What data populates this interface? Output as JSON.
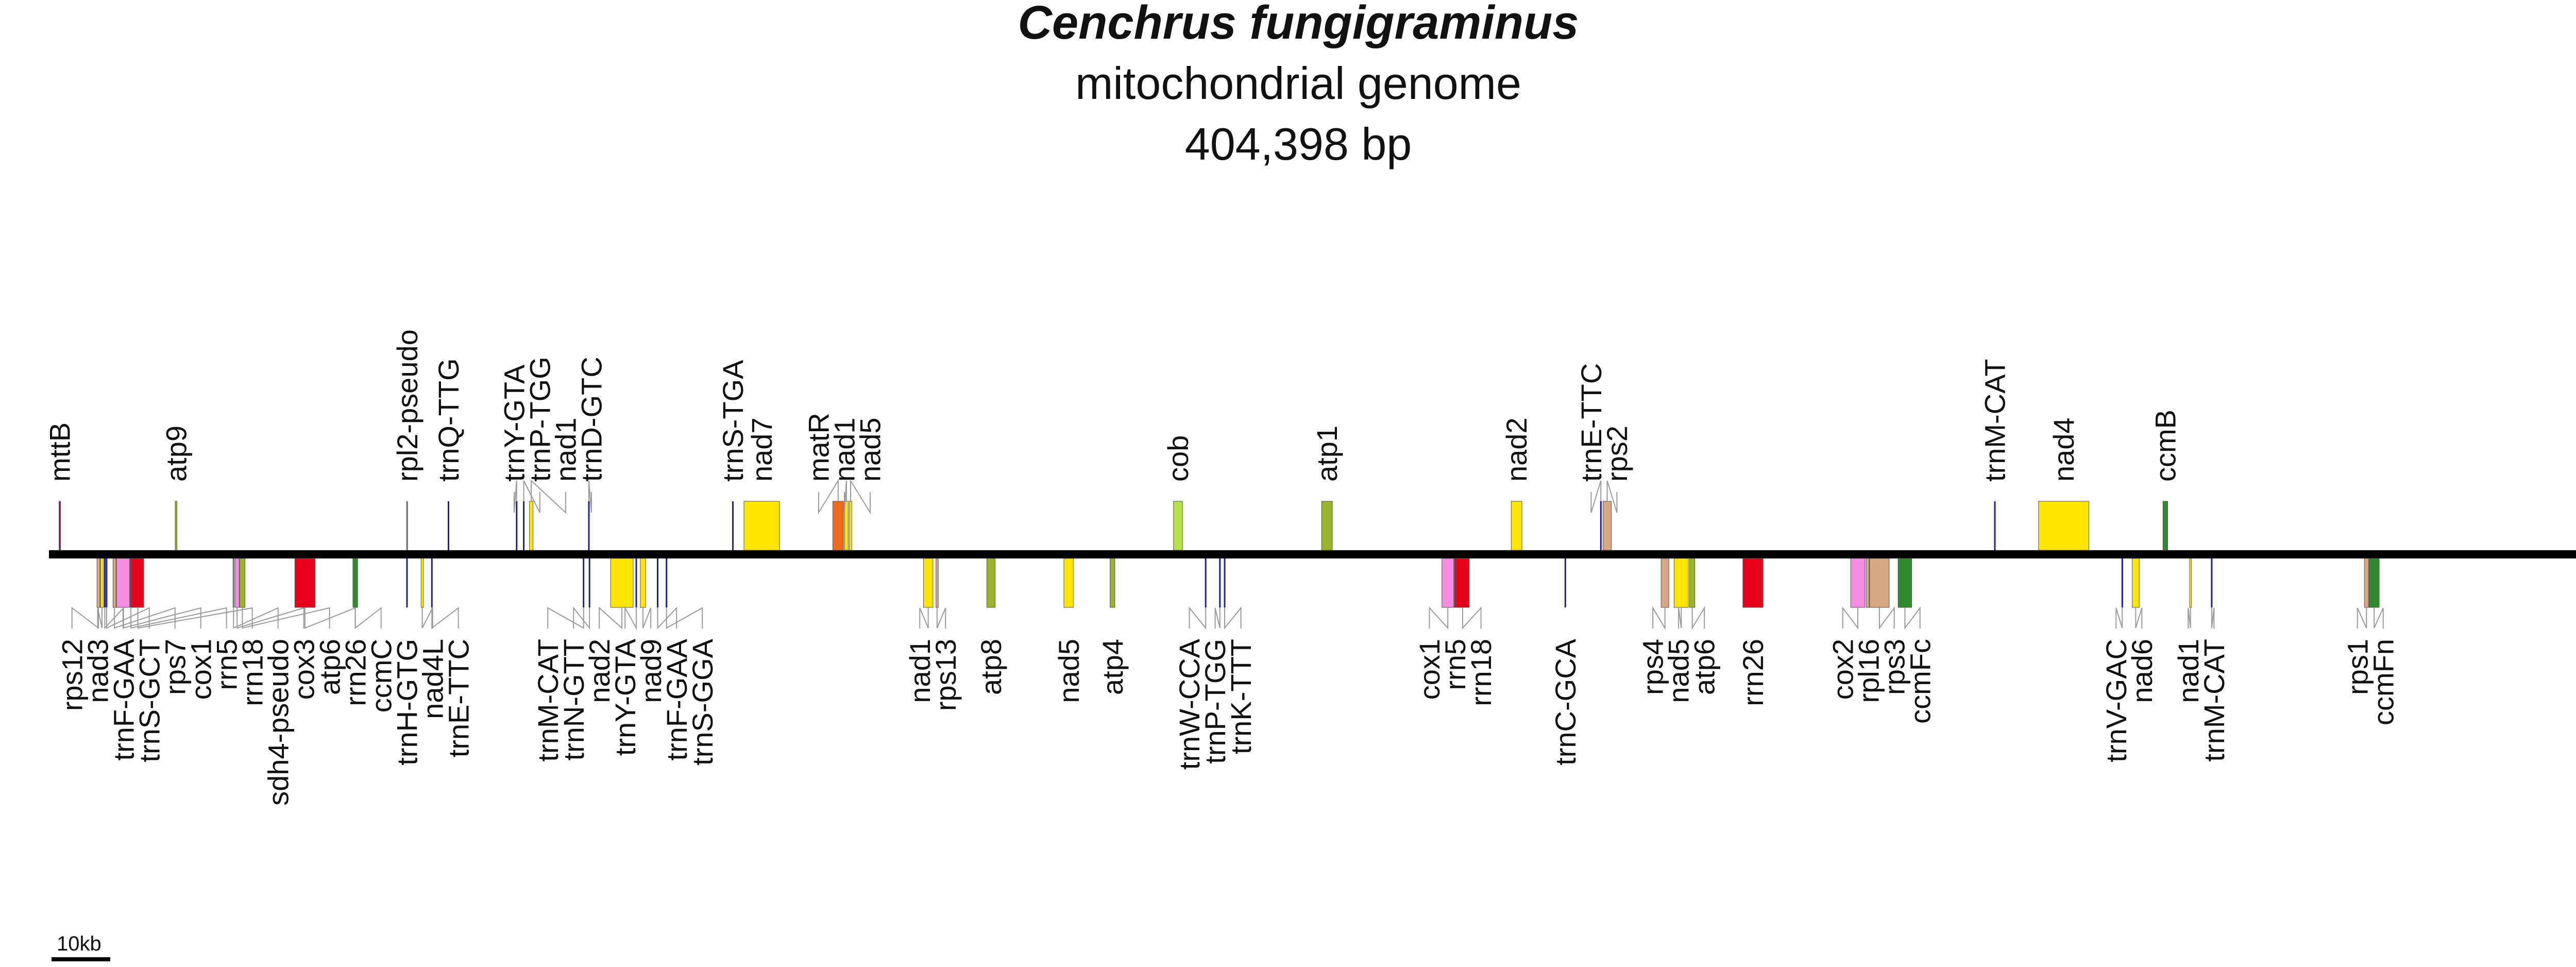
{
  "title": {
    "species": "Cenchrus fungigraminus",
    "subtitle": "mitochondrial genome",
    "size": "404,398 bp"
  },
  "scale_bar": {
    "label": "10kb"
  },
  "colors": {
    "backbone": "#000000",
    "leader": "#9a9a9a",
    "complex_I": "#ffe600",
    "complex_V": "#9bb52a",
    "complex_III": "#b8e04a",
    "complex_IV": "#f58ee0",
    "cytochrome_c": "#2e8b2e",
    "ribosomal": "#d8a884",
    "trna": "#1e1e9a",
    "rrna": "#e8001a",
    "matR": "#f06a1e",
    "other": "#7a1a7a",
    "pseudo": "#777777"
  },
  "genes": [
    {
      "name": "mttB",
      "strand": "+",
      "pos": 0.4,
      "len": 0.2,
      "type": "other"
    },
    {
      "name": "atp9",
      "strand": "+",
      "pos": 20.0,
      "len": 0.3,
      "type": "complex_V"
    },
    {
      "name": "rpl2-pseudo",
      "strand": "+",
      "pos": 59.0,
      "len": 0.3,
      "type": "pseudo"
    },
    {
      "name": "trnQ-TTG",
      "strand": "+",
      "pos": 66.0,
      "len": 0.1,
      "type": "trna"
    },
    {
      "name": "trnY-GTA",
      "strand": "+",
      "pos": 77.5,
      "len": 0.1,
      "type": "trna"
    },
    {
      "name": "trnP-TGG",
      "strand": "+",
      "pos": 78.7,
      "len": 0.1,
      "type": "trna"
    },
    {
      "name": "nad1",
      "strand": "+",
      "pos": 79.8,
      "len": 0.6,
      "type": "complex_I"
    },
    {
      "name": "trnD-GTC",
      "strand": "+",
      "pos": 89.7,
      "len": 0.1,
      "type": "trna"
    },
    {
      "name": "trnS-TGA",
      "strand": "+",
      "pos": 114.0,
      "len": 0.1,
      "type": "trna"
    },
    {
      "name": "nad7",
      "strand": "+",
      "pos": 116.0,
      "len": 6.0,
      "type": "complex_I"
    },
    {
      "name": "matR",
      "strand": "+",
      "pos": 131.0,
      "len": 1.8,
      "type": "matR"
    },
    {
      "name": "nad1",
      "strand": "+",
      "pos": 133.0,
      "len": 0.6,
      "type": "complex_I"
    },
    {
      "name": "nad5",
      "strand": "+",
      "pos": 133.8,
      "len": 0.4,
      "type": "complex_I"
    },
    {
      "name": "cob",
      "strand": "+",
      "pos": 188.5,
      "len": 1.5,
      "type": "complex_III"
    },
    {
      "name": "atp1",
      "strand": "+",
      "pos": 213.5,
      "len": 1.8,
      "type": "complex_V"
    },
    {
      "name": "nad2",
      "strand": "+",
      "pos": 245.5,
      "len": 1.8,
      "type": "complex_I"
    },
    {
      "name": "trnE-TTC",
      "strand": "+",
      "pos": 260.5,
      "len": 0.1,
      "type": "trna"
    },
    {
      "name": "rps2",
      "strand": "+",
      "pos": 261.0,
      "len": 1.4,
      "type": "ribosomal"
    },
    {
      "name": "trnM-CAT",
      "strand": "+",
      "pos": 327.0,
      "len": 0.1,
      "type": "trna"
    },
    {
      "name": "nad4",
      "strand": "+",
      "pos": 334.5,
      "len": 8.5,
      "type": "complex_I"
    },
    {
      "name": "ccmB",
      "strand": "+",
      "pos": 355.5,
      "len": 0.8,
      "type": "cytochrome_c"
    },
    {
      "name": "rps12",
      "strand": "-",
      "pos": 6.8,
      "len": 0.5,
      "type": "ribosomal"
    },
    {
      "name": "nad3",
      "strand": "-",
      "pos": 7.4,
      "len": 0.5,
      "type": "complex_I"
    },
    {
      "name": "trnF-GAA",
      "strand": "-",
      "pos": 8.0,
      "len": 0.1,
      "type": "trna"
    },
    {
      "name": "trnS-GCT",
      "strand": "-",
      "pos": 8.3,
      "len": 0.1,
      "type": "trna"
    },
    {
      "name": "rps7",
      "strand": "-",
      "pos": 9.5,
      "len": 0.5,
      "type": "ribosomal"
    },
    {
      "name": "cox1",
      "strand": "-",
      "pos": 10.1,
      "len": 2.2,
      "type": "complex_IV"
    },
    {
      "name": "rrn5",
      "strand": "-",
      "pos": 12.4,
      "len": 0.2,
      "type": "rrna"
    },
    {
      "name": "rrn18",
      "strand": "-",
      "pos": 12.7,
      "len": 2.0,
      "type": "rrna"
    },
    {
      "name": "sdh4-pseudo",
      "strand": "-",
      "pos": 29.7,
      "len": 0.3,
      "type": "pseudo"
    },
    {
      "name": "cox3",
      "strand": "-",
      "pos": 30.1,
      "len": 0.7,
      "type": "complex_IV"
    },
    {
      "name": "atp6",
      "strand": "-",
      "pos": 30.9,
      "len": 0.9,
      "type": "complex_V"
    },
    {
      "name": "rrn26",
      "strand": "-",
      "pos": 40.2,
      "len": 3.4,
      "type": "rrna"
    },
    {
      "name": "ccmC",
      "strand": "-",
      "pos": 50.0,
      "len": 0.8,
      "type": "cytochrome_c"
    },
    {
      "name": "trnH-GTG",
      "strand": "-",
      "pos": 59.0,
      "len": 0.2,
      "type": "trna"
    },
    {
      "name": "nad4L",
      "strand": "-",
      "pos": 61.5,
      "len": 0.4,
      "type": "complex_I"
    },
    {
      "name": "trnE-TTC",
      "strand": "-",
      "pos": 63.2,
      "len": 0.1,
      "type": "trna"
    },
    {
      "name": "trnM-CAT",
      "strand": "-",
      "pos": 88.8,
      "len": 0.1,
      "type": "trna"
    },
    {
      "name": "trnN-GTT",
      "strand": "-",
      "pos": 89.8,
      "len": 0.1,
      "type": "trna"
    },
    {
      "name": "nad2",
      "strand": "-",
      "pos": 93.5,
      "len": 3.8,
      "type": "complex_I"
    },
    {
      "name": "trnY-GTA",
      "strand": "-",
      "pos": 97.7,
      "len": 0.1,
      "type": "trna"
    },
    {
      "name": "nad9",
      "strand": "-",
      "pos": 98.5,
      "len": 0.9,
      "type": "complex_I"
    },
    {
      "name": "trnF-GAA",
      "strand": "-",
      "pos": 101.3,
      "len": 0.1,
      "type": "trna"
    },
    {
      "name": "trnS-GGA",
      "strand": "-",
      "pos": 102.8,
      "len": 0.1,
      "type": "trna"
    },
    {
      "name": "nad1",
      "strand": "-",
      "pos": 146.3,
      "len": 1.6,
      "type": "complex_I"
    },
    {
      "name": "rps13",
      "strand": "-",
      "pos": 148.4,
      "len": 0.4,
      "type": "ribosomal"
    },
    {
      "name": "atp8",
      "strand": "-",
      "pos": 157.0,
      "len": 1.4,
      "type": "complex_V"
    },
    {
      "name": "nad5",
      "strand": "-",
      "pos": 170.0,
      "len": 1.6,
      "type": "complex_I"
    },
    {
      "name": "atp4",
      "strand": "-",
      "pos": 177.8,
      "len": 0.8,
      "type": "complex_V"
    },
    {
      "name": "trnW-CCA",
      "strand": "-",
      "pos": 193.8,
      "len": 0.1,
      "type": "trna"
    },
    {
      "name": "trnP-TGG",
      "strand": "-",
      "pos": 196.2,
      "len": 0.1,
      "type": "trna"
    },
    {
      "name": "trnK-TTT",
      "strand": "-",
      "pos": 197.0,
      "len": 0.1,
      "type": "trna"
    },
    {
      "name": "cox1",
      "strand": "-",
      "pos": 233.8,
      "len": 2.0,
      "type": "complex_IV"
    },
    {
      "name": "rrn5",
      "strand": "-",
      "pos": 235.9,
      "len": 0.2,
      "type": "rrna"
    },
    {
      "name": "rrn18",
      "strand": "-",
      "pos": 236.2,
      "len": 2.2,
      "type": "rrna"
    },
    {
      "name": "trnC-GCA",
      "strand": "-",
      "pos": 254.5,
      "len": 0.1,
      "type": "trna"
    },
    {
      "name": "rps4",
      "strand": "-",
      "pos": 270.8,
      "len": 1.3,
      "type": "ribosomal"
    },
    {
      "name": "nad5",
      "strand": "-",
      "pos": 273.0,
      "len": 2.4,
      "type": "complex_I"
    },
    {
      "name": "atp6",
      "strand": "-",
      "pos": 275.6,
      "len": 0.9,
      "type": "complex_V"
    },
    {
      "name": "rrn26",
      "strand": "-",
      "pos": 284.6,
      "len": 3.4,
      "type": "rrna"
    },
    {
      "name": "cox2",
      "strand": "-",
      "pos": 302.8,
      "len": 2.4,
      "type": "complex_IV"
    },
    {
      "name": "rpl16",
      "strand": "-",
      "pos": 305.4,
      "len": 0.5,
      "type": "ribosomal"
    },
    {
      "name": "rps3",
      "strand": "-",
      "pos": 306.0,
      "len": 3.3,
      "type": "ribosomal"
    },
    {
      "name": "ccmFc",
      "strand": "-",
      "pos": 310.8,
      "len": 2.3,
      "type": "cytochrome_c"
    },
    {
      "name": "trnV-GAC",
      "strand": "-",
      "pos": 348.5,
      "len": 0.1,
      "type": "trna"
    },
    {
      "name": "nad6",
      "strand": "-",
      "pos": 350.3,
      "len": 1.2,
      "type": "complex_I"
    },
    {
      "name": "nad1",
      "strand": "-",
      "pos": 360.0,
      "len": 0.3,
      "type": "complex_I"
    },
    {
      "name": "trnM-CAT",
      "strand": "-",
      "pos": 363.6,
      "len": 0.1,
      "type": "trna"
    },
    {
      "name": "rps1",
      "strand": "-",
      "pos": 389.5,
      "len": 0.7,
      "type": "ribosomal"
    },
    {
      "name": "ccmFn",
      "strand": "-",
      "pos": 390.3,
      "len": 1.7,
      "type": "cytochrome_c"
    }
  ]
}
